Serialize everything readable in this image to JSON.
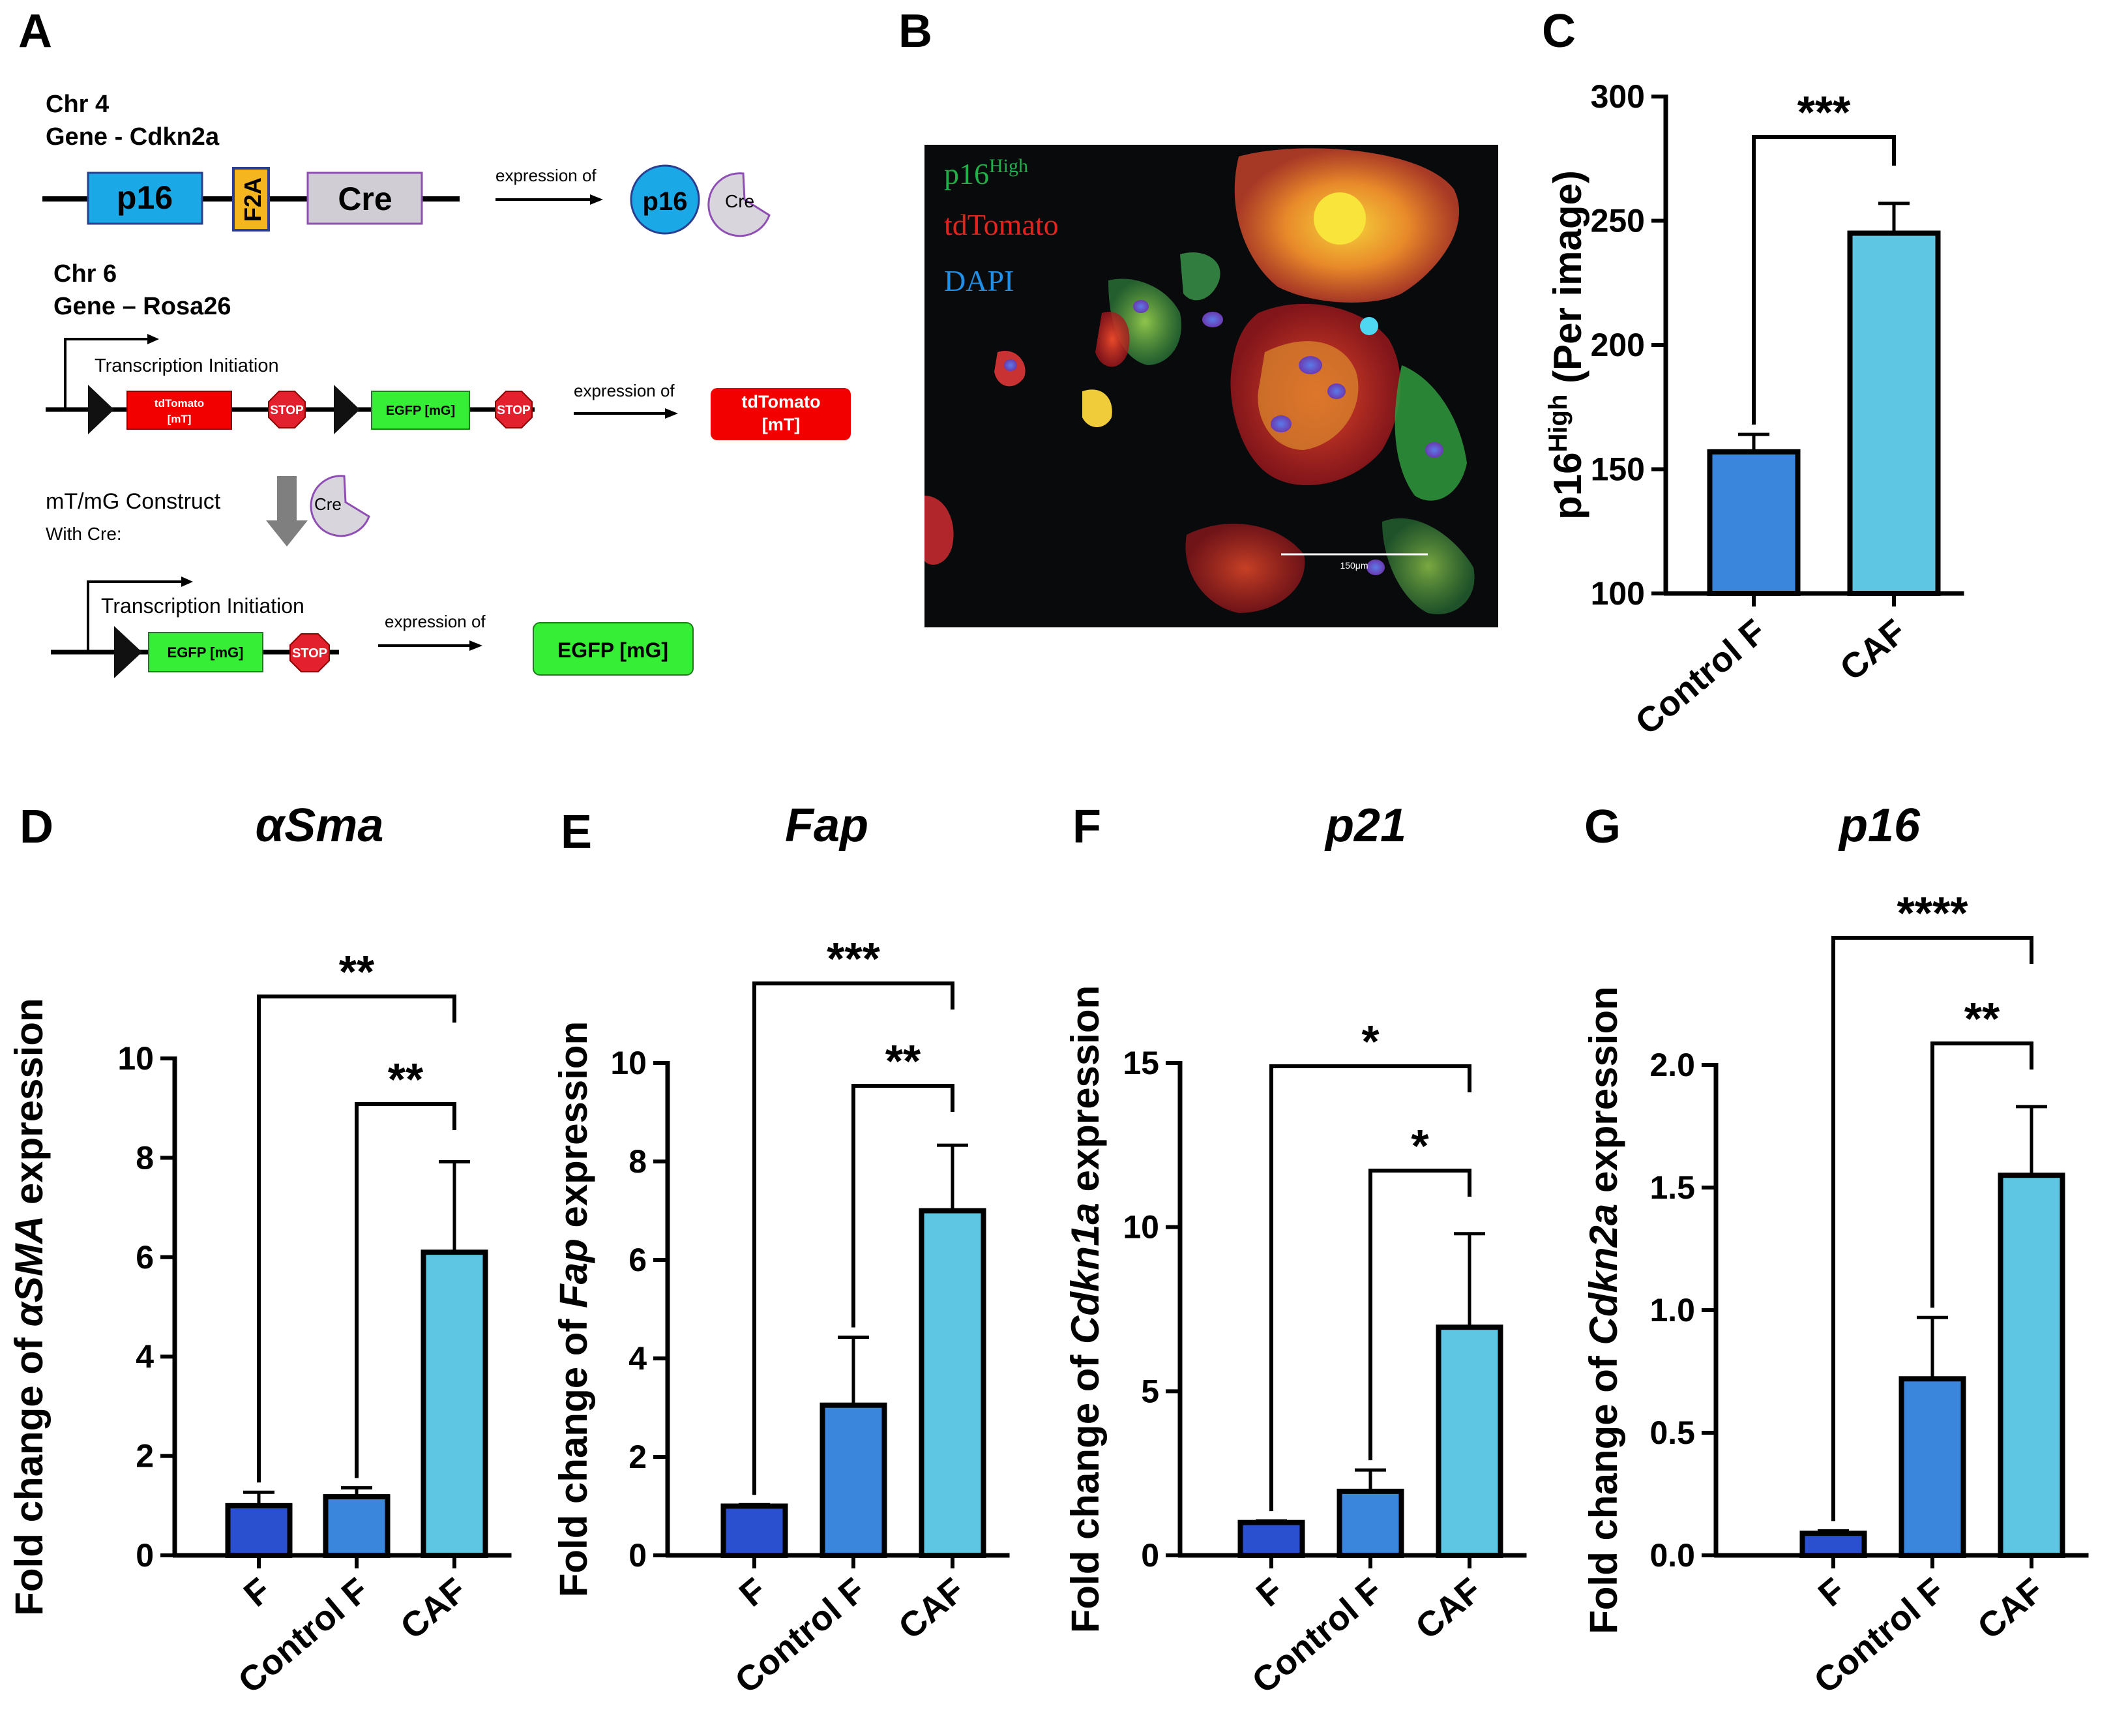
{
  "panel_labels": [
    "A",
    "B",
    "C",
    "D",
    "E",
    "F",
    "G"
  ],
  "schematic": {
    "chr4": "Chr 4",
    "gene4": "Gene - Cdkn2a",
    "p16_box": "p16",
    "f2a_box": "F2A",
    "cre_box": "Cre",
    "expression_of": "expression of",
    "p16_circle": "p16",
    "cre_pac": "Cre",
    "chr6": "Chr 6",
    "gene6": "Gene – Rosa26",
    "transcription_initiation": "Transcription Initiation",
    "tdtomato_line1": "tdTomato",
    "tdtomato_line2": "[mT]",
    "stop": "STOP",
    "egfp_box": "EGFP [mG]",
    "result_tdtomato_line1": "tdTomato",
    "result_tdtomato_line2": "[mT]",
    "mtmg_line1": "mT/mG Construct",
    "mtmg_line2": "With Cre:",
    "result_egfp": "EGFP [mG]",
    "colors": {
      "blue_box": "#1BA8E6",
      "f2a": "#F5B51E",
      "cre": "#D0CDD4",
      "red": "#F20000",
      "green": "#35EE35",
      "stop": "#E3202E"
    }
  },
  "micrograph": {
    "legend_p16": "p16",
    "legend_p16_sup": "High",
    "legend_tdtomato": "tdTomato",
    "legend_dapi": "DAPI",
    "scale_bar_text": "150μm",
    "colors": {
      "p16": "#1FB04A",
      "tdtomato": "#E3241E",
      "dapi": "#1F8FE8"
    }
  },
  "chart_data": [
    {
      "panel": "C",
      "type": "bar",
      "title": "",
      "ylabel_main": "p16",
      "ylabel_sup": "High",
      "ylabel_rest": " (Per image)",
      "ylim": [
        100,
        300
      ],
      "yticks": [
        100,
        150,
        200,
        250,
        300
      ],
      "ytick_labels": [
        "100",
        "150",
        "200",
        "250",
        "300"
      ],
      "categories": [
        "Control F",
        "CAF"
      ],
      "values": [
        157,
        245
      ],
      "errors": [
        7,
        12
      ],
      "colors": [
        "#3A86DD",
        "#5EC6E2"
      ],
      "significance": [
        {
          "from": 0,
          "to": 1,
          "label": "***"
        }
      ]
    },
    {
      "panel": "D",
      "type": "bar",
      "title": "αSma",
      "ylabel_pre": "Fold change of ",
      "ylabel_gene": "αSMA",
      "ylabel_post": " expression",
      "ylim": [
        0,
        10
      ],
      "yticks": [
        0,
        2,
        4,
        6,
        8,
        10
      ],
      "ytick_labels": [
        "0",
        "2",
        "4",
        "6",
        "8",
        "10"
      ],
      "categories": [
        "F",
        "Control F",
        "CAF"
      ],
      "values": [
        1.0,
        1.18,
        6.1
      ],
      "errors": [
        0.27,
        0.18,
        1.82
      ],
      "colors": [
        "#2A4FCF",
        "#3A86DD",
        "#5EC6E2"
      ],
      "significance": [
        {
          "from": 0,
          "to": 2,
          "label": "**"
        },
        {
          "from": 1,
          "to": 2,
          "label": "**"
        }
      ]
    },
    {
      "panel": "E",
      "type": "bar",
      "title": "Fap",
      "ylabel_pre": "Fold change of ",
      "ylabel_gene": "Fap",
      "ylabel_post": " expression",
      "ylim": [
        0,
        10
      ],
      "yticks": [
        0,
        2,
        4,
        6,
        8,
        10
      ],
      "ytick_labels": [
        "0",
        "2",
        "4",
        "6",
        "8",
        "10"
      ],
      "categories": [
        "F",
        "Control F",
        "CAF"
      ],
      "values": [
        1.0,
        3.05,
        7.0
      ],
      "errors": [
        0.03,
        1.38,
        1.33
      ],
      "colors": [
        "#2A4FCF",
        "#3A86DD",
        "#5EC6E2"
      ],
      "significance": [
        {
          "from": 0,
          "to": 2,
          "label": "***"
        },
        {
          "from": 1,
          "to": 2,
          "label": "**"
        }
      ]
    },
    {
      "panel": "F",
      "type": "bar",
      "title": "p21",
      "ylabel_pre": "Fold change of ",
      "ylabel_gene": "Cdkn1a",
      "ylabel_post": " expression",
      "ylim": [
        0,
        15
      ],
      "yticks": [
        0,
        5,
        10,
        15
      ],
      "ytick_labels": [
        "0",
        "5",
        "10",
        "15"
      ],
      "categories": [
        "F",
        "Control F",
        "CAF"
      ],
      "values": [
        1.0,
        1.95,
        6.95
      ],
      "errors": [
        0.05,
        0.65,
        2.85
      ],
      "colors": [
        "#2A4FCF",
        "#3A86DD",
        "#5EC6E2"
      ],
      "significance": [
        {
          "from": 0,
          "to": 2,
          "label": "*"
        },
        {
          "from": 1,
          "to": 2,
          "label": "*"
        }
      ]
    },
    {
      "panel": "G",
      "type": "bar",
      "title": "p16",
      "ylabel_pre": "Fold change of ",
      "ylabel_gene": "Cdkn2a",
      "ylabel_post": " expression",
      "ylim": [
        0,
        2.0
      ],
      "yticks": [
        0,
        0.5,
        1.0,
        1.5,
        2.0
      ],
      "ytick_labels": [
        "0.0",
        "0.5",
        "1.0",
        "1.5",
        "2.0"
      ],
      "categories": [
        "F",
        "Control F",
        "CAF"
      ],
      "values": [
        0.09,
        0.72,
        1.55
      ],
      "errors": [
        0.01,
        0.25,
        0.28
      ],
      "colors": [
        "#2A4FCF",
        "#3A86DD",
        "#5EC6E2"
      ],
      "significance": [
        {
          "from": 0,
          "to": 2,
          "label": "****"
        },
        {
          "from": 1,
          "to": 2,
          "label": "**"
        }
      ]
    }
  ]
}
